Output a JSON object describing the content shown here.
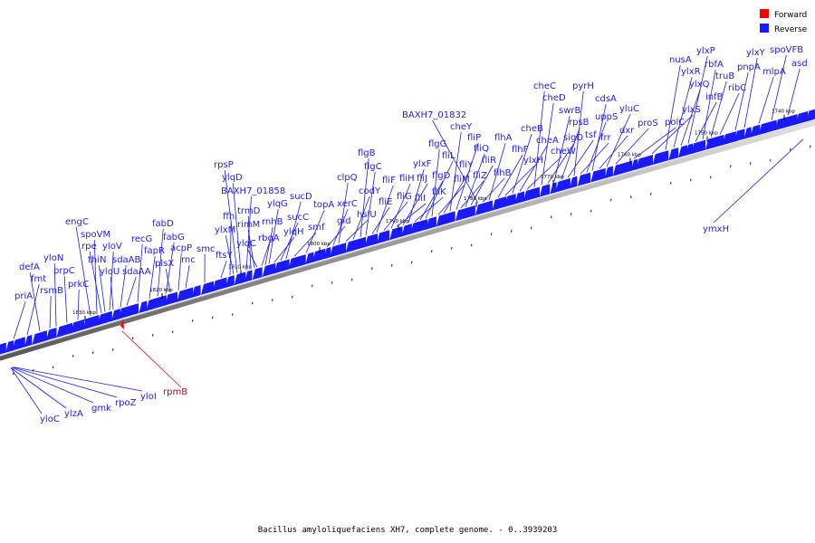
{
  "legend": {
    "items": [
      {
        "label": "Forward",
        "color": "#ff0000"
      },
      {
        "label": "Reverse",
        "color": "#1a1aff"
      }
    ]
  },
  "caption": "Bacillus amyloliquefaciens XH7, complete genome. - 0..3939203",
  "ticks": [
    "1830 kbp",
    "1820 kbp",
    "1810 kbp",
    "1800 kbp",
    "1790 kbp",
    "1780 kbp",
    "1770 kbp",
    "1760 kbp",
    "1750 kbp",
    "1740 kbp"
  ],
  "genes": [
    {
      "label": "priA",
      "strand": "reverse"
    },
    {
      "label": "fmt",
      "strand": "reverse"
    },
    {
      "label": "defA",
      "strand": "reverse"
    },
    {
      "label": "rsmB",
      "strand": "reverse"
    },
    {
      "label": "yloN",
      "strand": "reverse"
    },
    {
      "label": "prpC",
      "strand": "reverse"
    },
    {
      "label": "prkC",
      "strand": "reverse"
    },
    {
      "label": "engC",
      "strand": "reverse"
    },
    {
      "label": "spoVM",
      "strand": "reverse"
    },
    {
      "label": "rpe",
      "strand": "reverse"
    },
    {
      "label": "thiN",
      "strand": "reverse"
    },
    {
      "label": "yloV",
      "strand": "reverse"
    },
    {
      "label": "yloU",
      "strand": "reverse"
    },
    {
      "label": "sdaAB",
      "strand": "reverse"
    },
    {
      "label": "sdaAA",
      "strand": "reverse"
    },
    {
      "label": "recG",
      "strand": "reverse"
    },
    {
      "label": "fapR",
      "strand": "reverse"
    },
    {
      "label": "fabD",
      "strand": "reverse"
    },
    {
      "label": "fabG",
      "strand": "reverse"
    },
    {
      "label": "plsX",
      "strand": "reverse"
    },
    {
      "label": "acpP",
      "strand": "reverse"
    },
    {
      "label": "rnc",
      "strand": "reverse"
    },
    {
      "label": "smc",
      "strand": "reverse"
    },
    {
      "label": "ftsY",
      "strand": "reverse"
    },
    {
      "label": "ffh",
      "strand": "reverse"
    },
    {
      "label": "ylxM",
      "strand": "reverse"
    },
    {
      "label": "rpsP",
      "strand": "reverse"
    },
    {
      "label": "ylqD",
      "strand": "reverse"
    },
    {
      "label": "BAXH7_01858",
      "strand": "reverse"
    },
    {
      "label": "trmD",
      "strand": "reverse"
    },
    {
      "label": "rimM",
      "strand": "reverse"
    },
    {
      "label": "ylqC",
      "strand": "reverse"
    },
    {
      "label": "rbgA",
      "strand": "reverse"
    },
    {
      "label": "rnhB",
      "strand": "reverse"
    },
    {
      "label": "ylqG",
      "strand": "reverse"
    },
    {
      "label": "ylqH",
      "strand": "reverse"
    },
    {
      "label": "sucC",
      "strand": "reverse"
    },
    {
      "label": "sucD",
      "strand": "reverse"
    },
    {
      "label": "smf",
      "strand": "reverse"
    },
    {
      "label": "topA",
      "strand": "reverse"
    },
    {
      "label": "gid",
      "strand": "reverse"
    },
    {
      "label": "xerC",
      "strand": "reverse"
    },
    {
      "label": "clpQ",
      "strand": "reverse"
    },
    {
      "label": "hslU",
      "strand": "reverse"
    },
    {
      "label": "codY",
      "strand": "reverse"
    },
    {
      "label": "flgB",
      "strand": "reverse"
    },
    {
      "label": "flgC",
      "strand": "reverse"
    },
    {
      "label": "fliE",
      "strand": "reverse"
    },
    {
      "label": "fliF",
      "strand": "reverse"
    },
    {
      "label": "fliG",
      "strand": "reverse"
    },
    {
      "label": "fliH",
      "strand": "reverse"
    },
    {
      "label": "fliI",
      "strand": "reverse"
    },
    {
      "label": "fliJ",
      "strand": "reverse"
    },
    {
      "label": "ylxF",
      "strand": "reverse"
    },
    {
      "label": "fliK",
      "strand": "reverse"
    },
    {
      "label": "flgD",
      "strand": "reverse"
    },
    {
      "label": "fliL",
      "strand": "reverse"
    },
    {
      "label": "flgG",
      "strand": "reverse"
    },
    {
      "label": "fliM",
      "strand": "reverse"
    },
    {
      "label": "fliY",
      "strand": "reverse"
    },
    {
      "label": "cheY",
      "strand": "reverse"
    },
    {
      "label": "fliP",
      "strand": "reverse"
    },
    {
      "label": "fliZ",
      "strand": "reverse"
    },
    {
      "label": "fliQ",
      "strand": "reverse"
    },
    {
      "label": "fliR",
      "strand": "reverse"
    },
    {
      "label": "BAXH7_01832",
      "strand": "reverse"
    },
    {
      "label": "flhB",
      "strand": "reverse"
    },
    {
      "label": "flhA",
      "strand": "reverse"
    },
    {
      "label": "flhF",
      "strand": "reverse"
    },
    {
      "label": "ylxH",
      "strand": "reverse"
    },
    {
      "label": "cheB",
      "strand": "reverse"
    },
    {
      "label": "cheA",
      "strand": "reverse"
    },
    {
      "label": "cheW",
      "strand": "reverse"
    },
    {
      "label": "cheC",
      "strand": "reverse"
    },
    {
      "label": "cheD",
      "strand": "reverse"
    },
    {
      "label": "sigD",
      "strand": "reverse"
    },
    {
      "label": "swrB",
      "strand": "reverse"
    },
    {
      "label": "rpsB",
      "strand": "reverse"
    },
    {
      "label": "tsf",
      "strand": "reverse"
    },
    {
      "label": "pyrH",
      "strand": "reverse"
    },
    {
      "label": "frr",
      "strand": "reverse"
    },
    {
      "label": "uppS",
      "strand": "reverse"
    },
    {
      "label": "cdsA",
      "strand": "reverse"
    },
    {
      "label": "dxr",
      "strand": "reverse"
    },
    {
      "label": "yluC",
      "strand": "reverse"
    },
    {
      "label": "proS",
      "strand": "reverse"
    },
    {
      "label": "polC",
      "strand": "reverse"
    },
    {
      "label": "ylxS",
      "strand": "reverse"
    },
    {
      "label": "nusA",
      "strand": "reverse"
    },
    {
      "label": "ylxR",
      "strand": "reverse"
    },
    {
      "label": "ylxQ",
      "strand": "reverse"
    },
    {
      "label": "ylxP",
      "strand": "reverse"
    },
    {
      "label": "infB",
      "strand": "reverse"
    },
    {
      "label": "rbfA",
      "strand": "reverse"
    },
    {
      "label": "truB",
      "strand": "reverse"
    },
    {
      "label": "ribC",
      "strand": "reverse"
    },
    {
      "label": "rpsO",
      "strand": "reverse"
    },
    {
      "label": "pnpA",
      "strand": "reverse"
    },
    {
      "label": "ylxY",
      "strand": "reverse"
    },
    {
      "label": "mlpA",
      "strand": "reverse"
    },
    {
      "label": "spoVFB",
      "strand": "reverse"
    },
    {
      "label": "asd",
      "strand": "reverse"
    },
    {
      "label": "ymxH",
      "strand": "reverse"
    },
    {
      "label": "yloC",
      "strand": "reverse"
    },
    {
      "label": "ylzA",
      "strand": "reverse"
    },
    {
      "label": "gmk",
      "strand": "reverse"
    },
    {
      "label": "rpoZ",
      "strand": "reverse"
    },
    {
      "label": "yloI",
      "strand": "reverse"
    },
    {
      "label": "rpmB",
      "strand": "forward"
    }
  ]
}
